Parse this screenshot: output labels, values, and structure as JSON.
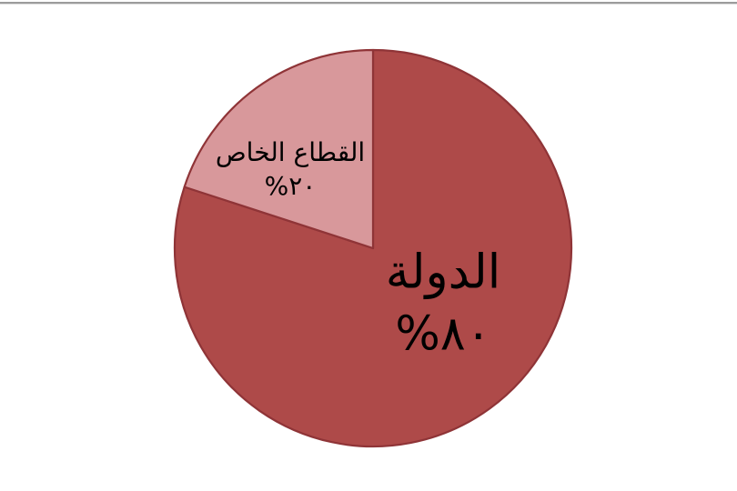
{
  "page": {
    "background": "#ffffff",
    "top_border_color": "#9c9c9c"
  },
  "chart_data": {
    "type": "pie",
    "title": "",
    "labels": [
      "الدولة",
      "القطاع الخاص"
    ],
    "values": [
      80,
      20
    ],
    "display_values": [
      "٨٠%",
      "٢٠%"
    ],
    "colors": [
      "#ae4a49",
      "#d8989b"
    ],
    "border_color": "#8f3437",
    "text_color": "#000000",
    "start_angle_deg": 0,
    "direction": "clockwise",
    "legend": "none",
    "labels_position": "inside"
  }
}
